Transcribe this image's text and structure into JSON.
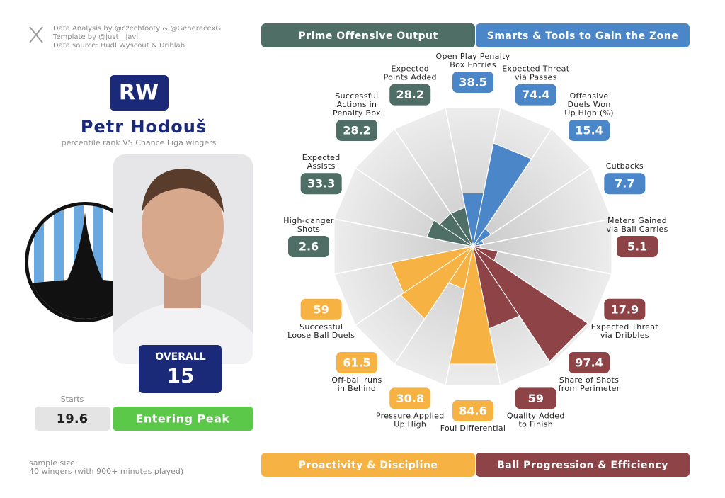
{
  "credits": [
    "Data Analysis by @czechfooty & @GeneracexG",
    "Template by @just__javi",
    "Data source: Hudl Wyscout & Driblab"
  ],
  "player": {
    "position": "RW",
    "name": "Petr Hodouš",
    "subtitle": "percentile rank VS Chance Liga wingers",
    "overall_label": "OVERALL",
    "overall": 15,
    "starts_label": "Starts",
    "starts": 19.6,
    "status": "Entering Peak"
  },
  "sample": [
    "sample size:",
    "40 wingers (with 900+ minutes played)"
  ],
  "chart_data": {
    "type": "pizza",
    "series": [
      {
        "name": "Smarts & Tools to Gain the Zone",
        "color": "#4a86c8",
        "categories": [
          [
            "Open Play Penalty",
            "Box Entries"
          ],
          [
            "Expected Threat",
            "via Passes"
          ],
          [
            "Offensive",
            "Duels Won",
            "Up High (%)"
          ],
          [
            "Cutbacks"
          ]
        ],
        "values": [
          38.5,
          74.4,
          15.4,
          7.7
        ]
      },
      {
        "name": "Ball Progression & Efficiency",
        "color": "#8e4347",
        "categories": [
          [
            "Meters Gained",
            "via Ball Carries"
          ],
          [
            "Expected Threat",
            "via Dribbles"
          ],
          [
            "Share of Shots",
            "from Perimeter"
          ],
          [
            "Quality Added",
            "to Finish"
          ]
        ],
        "values": [
          5.1,
          17.9,
          97.4,
          59
        ]
      },
      {
        "name": "Proactivity & Discipline",
        "color": "#f6b243",
        "categories": [
          [
            "Foul Differential"
          ],
          [
            "Pressure Applied",
            "Up High"
          ],
          [
            "Off-ball runs",
            "in Behind"
          ],
          [
            "Successful",
            "Loose Ball Duels"
          ]
        ],
        "values": [
          84.6,
          30.8,
          61.5,
          59
        ]
      },
      {
        "name": "Prime Offensive Output",
        "color": "#4e6e66",
        "categories": [
          [
            "High-danger",
            "Shots"
          ],
          [
            "Expected",
            "Assists"
          ],
          [
            "Successful",
            "Actions in",
            "Penalty Box"
          ],
          [
            "Expected",
            "Points Added"
          ]
        ],
        "values": [
          2.6,
          33.3,
          28.2,
          28.2
        ]
      }
    ],
    "rlim": [
      0,
      100
    ]
  }
}
